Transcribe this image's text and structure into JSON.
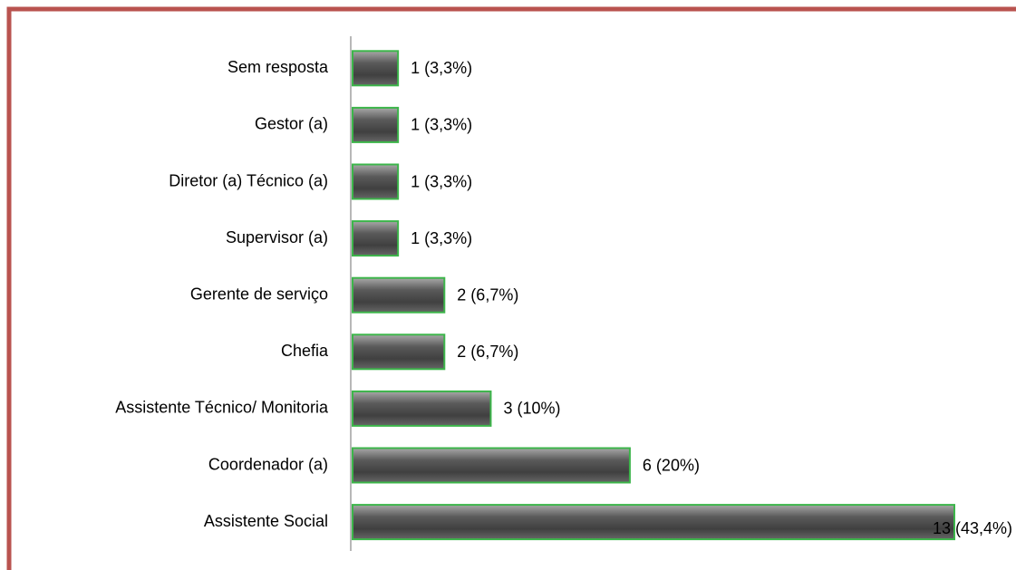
{
  "chart_data": {
    "type": "bar",
    "orientation": "horizontal",
    "categories": [
      "Sem resposta",
      "Gestor (a)",
      "Diretor (a) Técnico (a)",
      "Supervisor (a)",
      "Gerente de serviço",
      "Chefia",
      "Assistente Técnico/ Monitoria",
      "Coordenador (a)",
      "Assistente Social"
    ],
    "values": [
      1,
      1,
      1,
      1,
      2,
      2,
      3,
      6,
      13
    ],
    "value_labels": [
      "1 (3,3%)",
      "1 (3,3%)",
      "1 (3,3%)",
      "1 (3,3%)",
      "2 (6,7%)",
      "2 (6,7%)",
      "3 (10%)",
      "6 (20%)",
      "13 (43,4%)"
    ],
    "color": "#555555",
    "edge_color": "#3cb54a",
    "frame_color": "#b9534f"
  }
}
